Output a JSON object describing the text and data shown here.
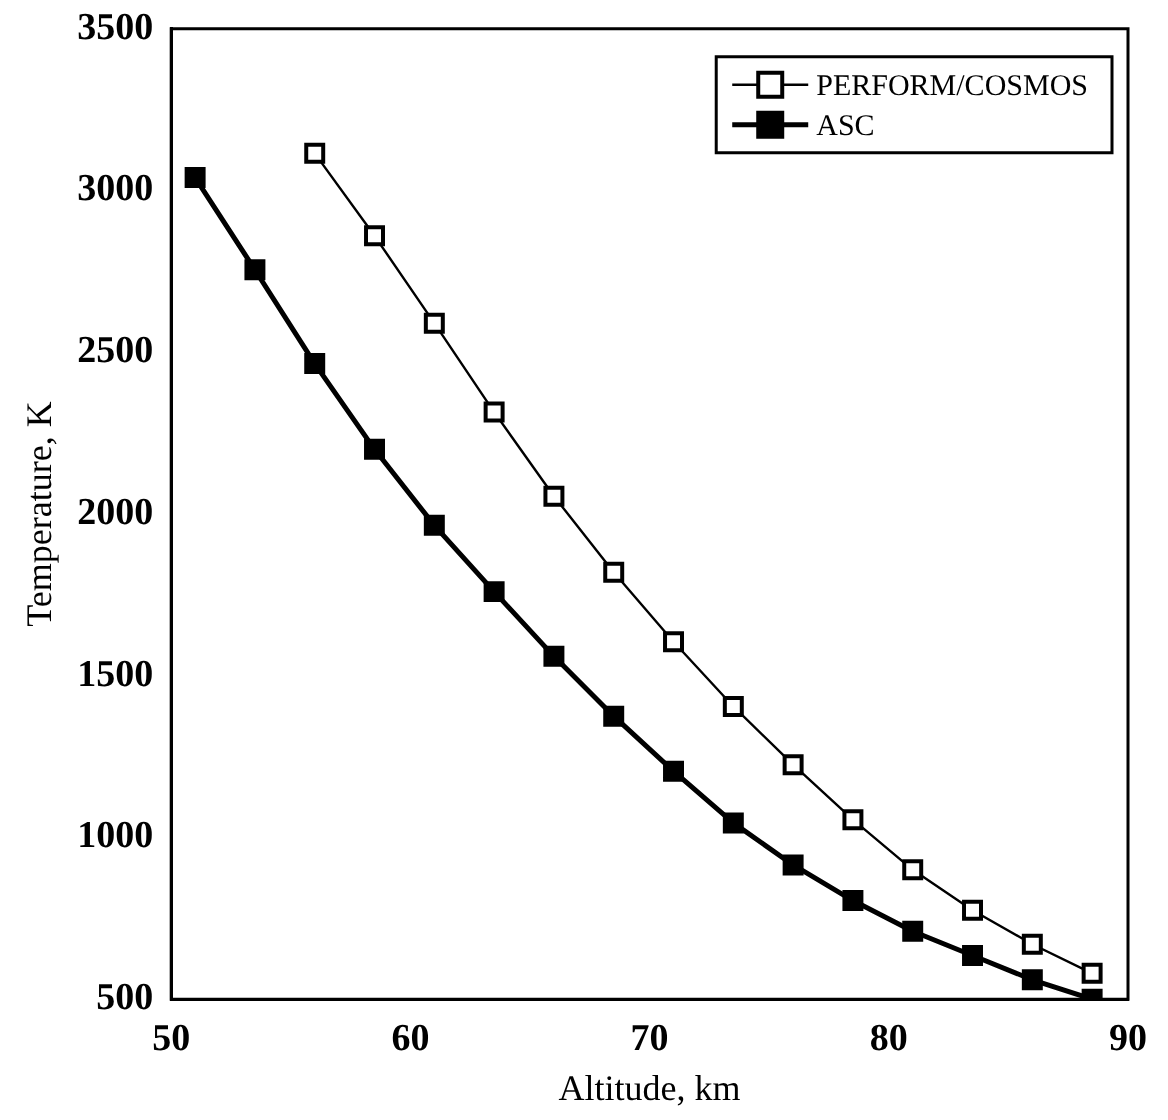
{
  "chart_data": {
    "type": "line",
    "xlabel": "Altitude, km",
    "ylabel": "Temperature, K",
    "xlim": [
      50,
      90
    ],
    "xticks": [
      50,
      60,
      70,
      80,
      90
    ],
    "ylim": [
      500,
      3500
    ],
    "yticks": [
      500,
      1000,
      1500,
      2000,
      2500,
      3000,
      3500
    ],
    "grid": false,
    "legend": "top right",
    "marker": "square",
    "line_style": "solid",
    "series": [
      {
        "name": "PERFORM/COSMOS",
        "color": "#000000",
        "x": [
          56,
          58.5,
          61,
          63.5,
          66,
          68.5,
          71,
          73.5,
          76,
          78.5,
          81,
          83.5,
          86,
          88.5
        ],
        "values": [
          3115,
          2860,
          2590,
          2315,
          2055,
          1820,
          1605,
          1405,
          1225,
          1055,
          900,
          775,
          670,
          580
        ]
      },
      {
        "name": "ASC",
        "color": "#000000",
        "x": [
          51,
          53.5,
          56,
          58.5,
          61,
          63.5,
          66,
          68.5,
          71,
          73.5,
          76,
          78.5,
          81,
          83.5,
          86,
          88.5
        ],
        "values": [
          3040,
          2755,
          2465,
          2200,
          1965,
          1760,
          1560,
          1375,
          1205,
          1045,
          915,
          805,
          710,
          635,
          560,
          500
        ]
      }
    ]
  }
}
